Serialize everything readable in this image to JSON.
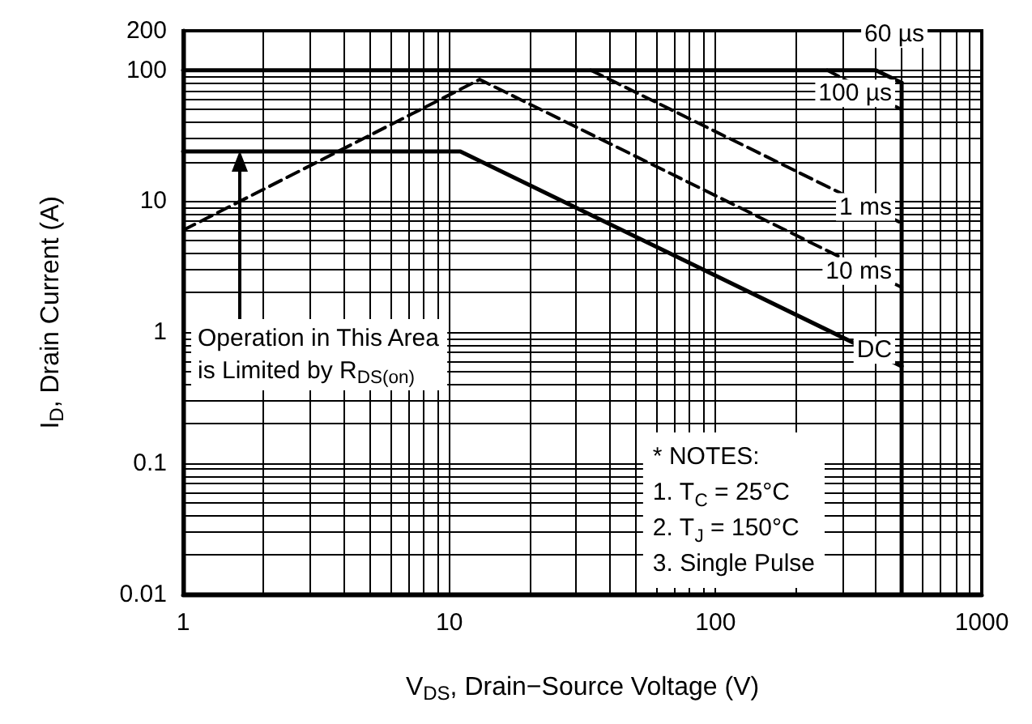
{
  "chart_data": {
    "type": "line",
    "xlabel": "V$_{DS}$, Drain−Source Voltage (V)",
    "ylabel": "I$_{D}$, Drain Current (A)",
    "log": "xy",
    "grid": true,
    "legend": false,
    "marker": "none",
    "xlim": [
      1,
      1000
    ],
    "xticks": [
      1,
      10,
      100,
      1000
    ],
    "ylim": [
      0.01,
      200
    ],
    "yticks": [
      0.01,
      0.1,
      1,
      10,
      100,
      200
    ],
    "series": [
      {
        "name": "60 µs",
        "color": "#000000",
        "line_style": "solid",
        "x": [
          1,
          400,
          500
        ],
        "values": [
          100,
          100,
          80
        ]
      },
      {
        "name": "100 µs",
        "color": "#000000",
        "line_style": "dashed",
        "x": [
          263,
          500
        ],
        "values": [
          100,
          50
        ]
      },
      {
        "name": "1 ms",
        "color": "#000000",
        "line_style": "dashed",
        "x": [
          34,
          500
        ],
        "values": [
          100,
          6.8
        ]
      },
      {
        "name": "10 ms",
        "color": "#000000",
        "line_style": "dashed",
        "x": [
          1,
          13,
          500
        ],
        "values": [
          6,
          85,
          2.2
        ]
      },
      {
        "name": "DC",
        "color": "#000000",
        "line_style": "solid",
        "x": [
          1,
          11,
          500
        ],
        "values": [
          24,
          24,
          0.55
        ]
      },
      {
        "color": "#000000",
        "line_style": "solid",
        "x": [
          500,
          500
        ],
        "values": [
          80,
          0.01
        ]
      }
    ],
    "annotations": [
      "Operation in This Area\nis Limited by R$_{DS(on)}$",
      "* NOTES:\n1. T$_{C}$ = 25°C\n2. T$_{J}$ = 150°C\n3. Single Pulse"
    ]
  }
}
